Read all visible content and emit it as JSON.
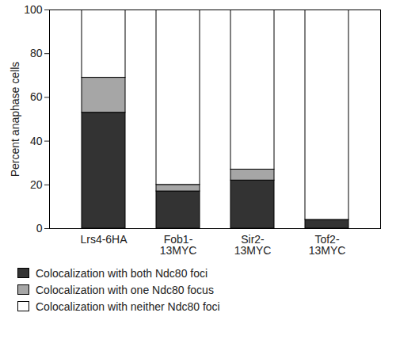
{
  "chart_data": {
    "type": "bar",
    "stacked": true,
    "categories": [
      "Lrs4-6HA",
      "Fob1-13MYC",
      "Sir2-13MYC",
      "Tof2-13MYC"
    ],
    "y_label": "Percent anaphase cells",
    "ylim": [
      0,
      100
    ],
    "yticks": [
      0,
      20,
      40,
      60,
      80,
      100
    ],
    "legend": "bottom",
    "series": [
      {
        "name": "Colocalization with both Ndc80 foci",
        "color": "#333333",
        "values": [
          53,
          17,
          22,
          4
        ]
      },
      {
        "name": "Colocalization with one Ndc80 focus",
        "color": "#a6a6a6",
        "values": [
          16,
          3,
          5,
          0
        ]
      },
      {
        "name": "Colocalization with neither Ndc80 foci",
        "color": "#ffffff",
        "values": [
          31,
          80,
          73,
          96
        ]
      }
    ]
  }
}
